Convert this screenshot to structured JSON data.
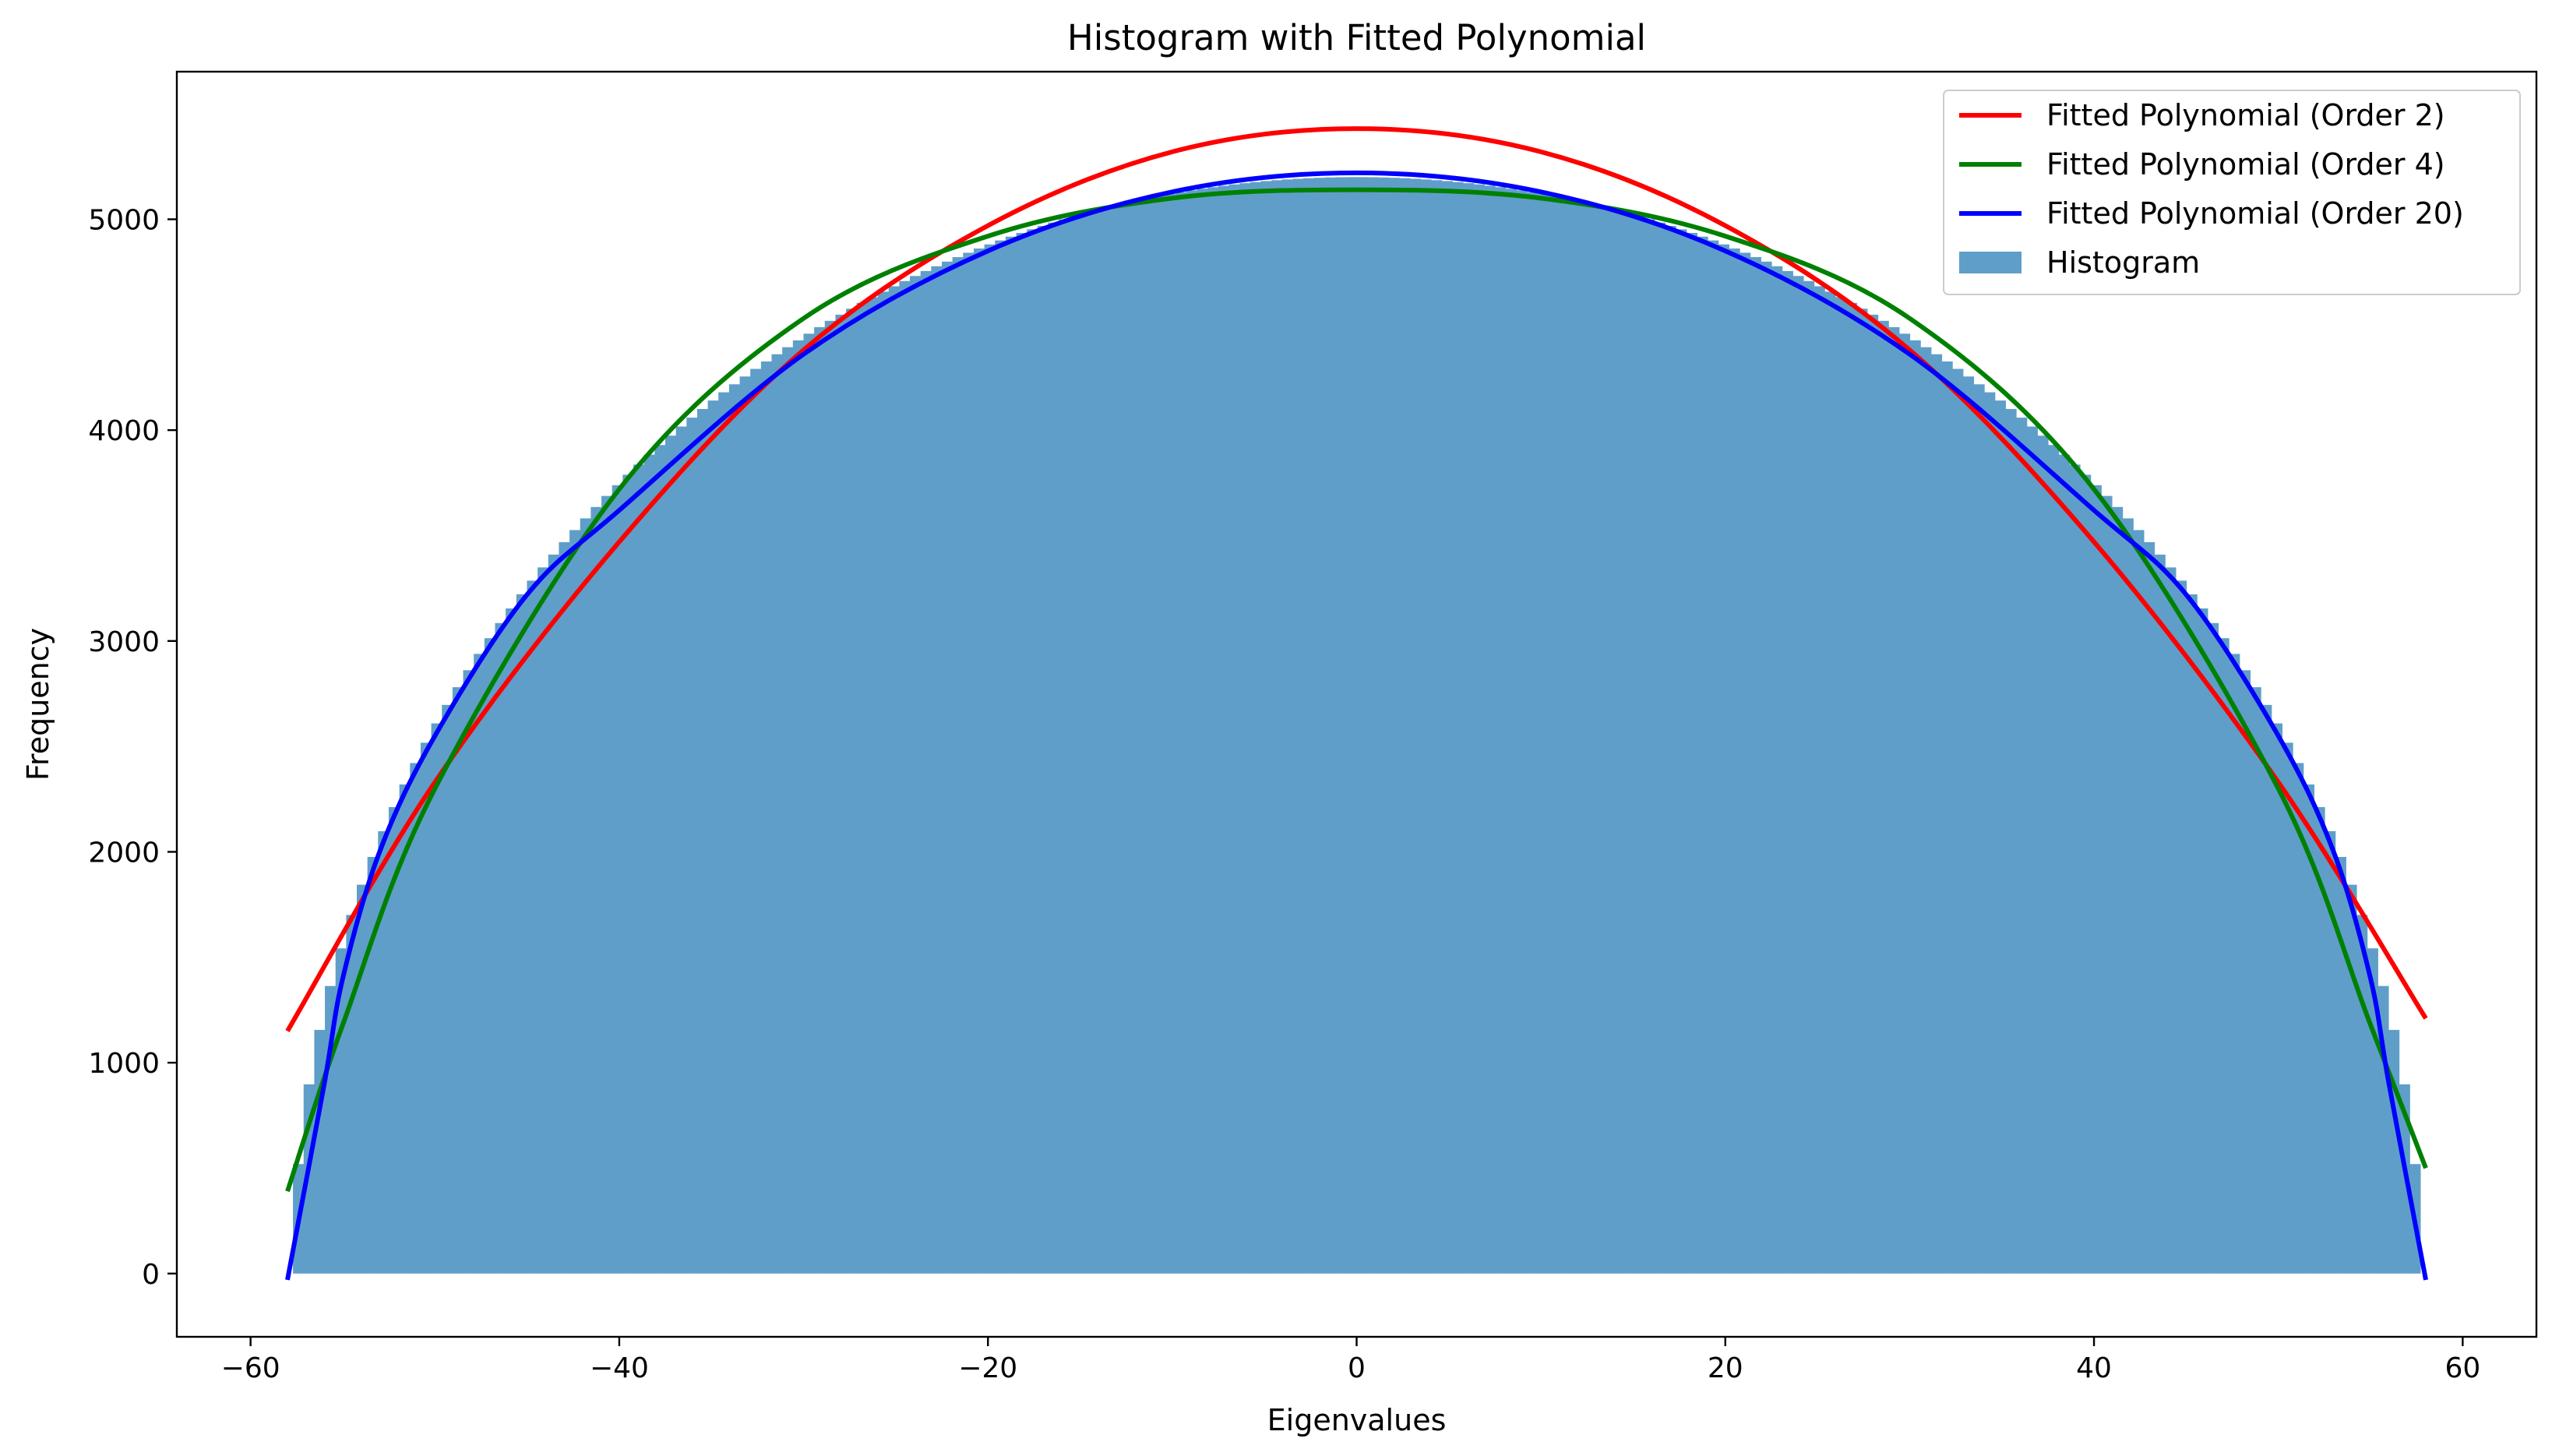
{
  "chart_data": {
    "type": "bar",
    "title": "Histogram with Fitted Polynomial",
    "xlabel": "Eigenvalues",
    "ylabel": "Frequency",
    "xlim": [
      -64,
      64
    ],
    "ylim": [
      -300,
      5700
    ],
    "xticks": [
      -60,
      -40,
      -20,
      0,
      20,
      40,
      60
    ],
    "yticks": [
      0,
      1000,
      2000,
      3000,
      4000,
      5000
    ],
    "grid": false,
    "legend_position": "top-right",
    "histogram": {
      "name": "Histogram",
      "color": "#5f9ec9",
      "x_min": -57.7,
      "x_max": 57.7,
      "bins": 200,
      "semicircle_peak": 5200,
      "semicircle_radius": 57.7
    },
    "series": [
      {
        "name": "Fitted Polynomial (Order 2)",
        "color": "#ff0000",
        "order": 2,
        "x": [
          -58,
          -50,
          -40,
          -30,
          -20,
          -10,
          0,
          10,
          20,
          30,
          40,
          50,
          58
        ],
        "values": [
          1150,
          2330,
          3470,
          4380,
          4970,
          5320,
          5430,
          5320,
          4970,
          4380,
          3470,
          2330,
          1210
        ]
      },
      {
        "name": "Fitted Polynomial (Order 4)",
        "color": "#008000",
        "order": 4,
        "x": [
          -58,
          -55,
          -50,
          -40,
          -30,
          -20,
          -10,
          0,
          10,
          20,
          30,
          40,
          50,
          55,
          58
        ],
        "values": [
          390,
          1180,
          2300,
          3720,
          4530,
          4920,
          5100,
          5140,
          5100,
          4920,
          4530,
          3720,
          2300,
          1180,
          500
        ]
      },
      {
        "name": "Fitted Polynomial (Order 20)",
        "color": "#0000ff",
        "order": 20,
        "x": [
          -58,
          -56,
          -55,
          -53,
          -50,
          -45,
          -40,
          -30,
          -20,
          -10,
          0,
          10,
          20,
          30,
          40,
          45,
          50,
          53,
          55,
          56,
          58
        ],
        "values": [
          -30,
          900,
          1400,
          2000,
          2550,
          3220,
          3620,
          4360,
          4850,
          5130,
          5220,
          5130,
          4850,
          4360,
          3620,
          3220,
          2550,
          2000,
          1400,
          900,
          -30
        ]
      }
    ]
  }
}
